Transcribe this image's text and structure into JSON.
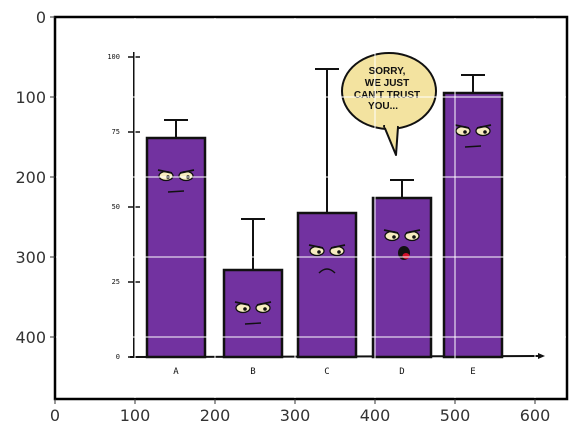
{
  "outer_axes": {
    "x_ticks": [
      "0",
      "100",
      "200",
      "300",
      "400",
      "500",
      "600"
    ],
    "y_ticks": [
      "0",
      "100",
      "200",
      "300",
      "400"
    ]
  },
  "chart_data": {
    "type": "bar",
    "title": "",
    "xlabel": "",
    "ylabel": "",
    "categories": [
      "A",
      "B",
      "C",
      "D",
      "E"
    ],
    "values": [
      73,
      29,
      48,
      53,
      88
    ],
    "error_upper": [
      79,
      46,
      96,
      59,
      94
    ],
    "ylim": [
      0,
      100
    ],
    "yticks": [
      "0",
      "25",
      "50",
      "75",
      "100"
    ],
    "colors": {
      "bar": "#7232a0",
      "outline": "#111111",
      "bubble": "#f3e3a0"
    },
    "bubble_text": [
      "SORRY,",
      "WE JUST",
      "CAN'T TRUST",
      "YOU..."
    ]
  }
}
